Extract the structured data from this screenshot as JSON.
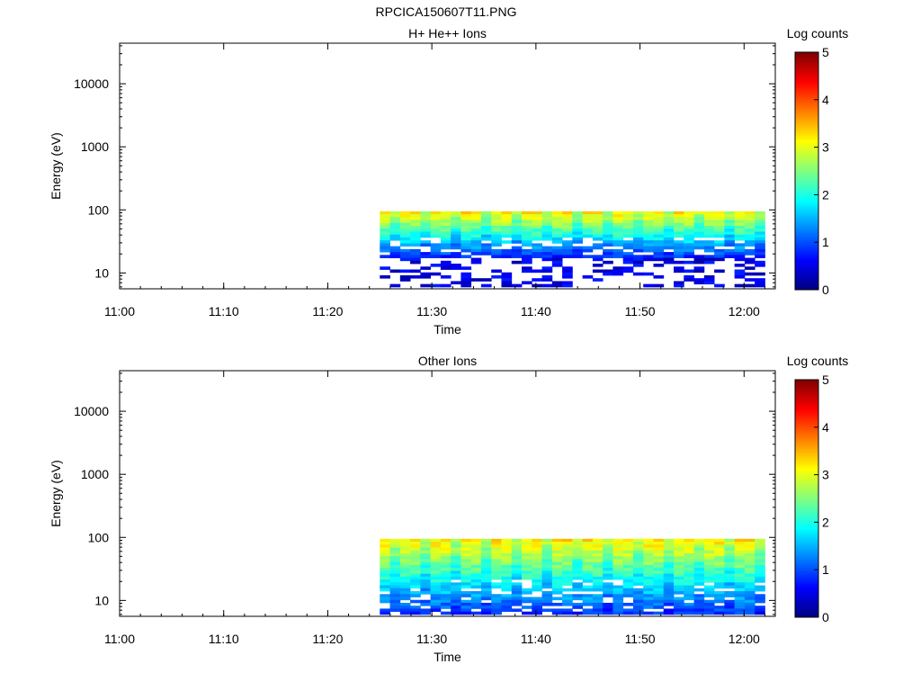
{
  "figure_title": "RPCICA150607T11.PNG",
  "chart_data": [
    {
      "type": "heatmap",
      "title": "H+ He++ Ions",
      "xlabel": "Time",
      "ylabel": "Energy (eV)",
      "x_ticks": [
        "11:00",
        "11:10",
        "11:20",
        "11:30",
        "11:40",
        "11:50",
        "12:00"
      ],
      "x_range": [
        "11:00",
        "12:03"
      ],
      "y_ticks": [
        "10",
        "100",
        "1000",
        "10000"
      ],
      "y_range": [
        5.6,
        44000
      ],
      "y_scale": "log",
      "data_time_start": "11:25",
      "data_time_end": "12:02",
      "data_energy_top": 95,
      "data_energy_bottom": 18,
      "sparse_energy_bottom": 6,
      "peak_log_counts": 3.3,
      "colorbar": {
        "label": "Log counts",
        "ticks": [
          "0",
          "1",
          "2",
          "3",
          "4",
          "5"
        ],
        "range": [
          0,
          5
        ]
      }
    },
    {
      "type": "heatmap",
      "title": "Other Ions",
      "xlabel": "Time",
      "ylabel": "Energy (eV)",
      "x_ticks": [
        "11:00",
        "11:10",
        "11:20",
        "11:30",
        "11:40",
        "11:50",
        "12:00"
      ],
      "x_range": [
        "11:00",
        "12:03"
      ],
      "y_ticks": [
        "10",
        "100",
        "1000",
        "10000"
      ],
      "y_range": [
        5.6,
        44000
      ],
      "y_scale": "log",
      "data_time_start": "11:25",
      "data_time_end": "12:02",
      "data_energy_top": 95,
      "data_energy_bottom": 6,
      "peak_log_counts": 3.3,
      "colorbar": {
        "label": "Log counts",
        "ticks": [
          "0",
          "1",
          "2",
          "3",
          "4",
          "5"
        ],
        "range": [
          0,
          5
        ]
      }
    }
  ]
}
